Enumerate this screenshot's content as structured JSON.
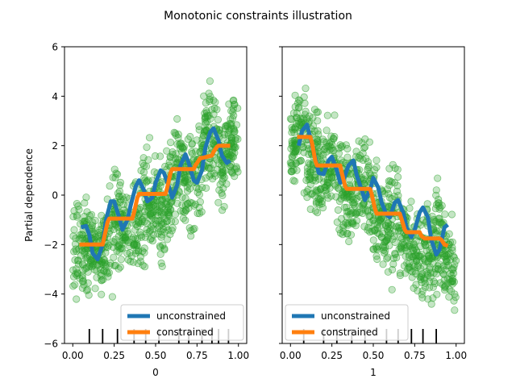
{
  "figure": {
    "title": "Monotonic constraints illustration"
  },
  "chart_data": [
    {
      "type": "line",
      "xlabel": "0",
      "ylabel": "Partial dependence",
      "xlim": [
        -0.05,
        1.05
      ],
      "ylim": [
        -6,
        6
      ],
      "x_ticks": [
        0.0,
        0.25,
        0.5,
        0.75,
        1.0
      ],
      "x_tick_labels": [
        "0.00",
        "0.25",
        "0.50",
        "0.75",
        "1.00"
      ],
      "y_ticks": [
        -6,
        -4,
        -2,
        0,
        2,
        4,
        6
      ],
      "y_tick_labels": [
        "−6",
        "−4",
        "−2",
        "0",
        "2",
        "4",
        "6"
      ],
      "grid": false,
      "legend_placement": "lower-right",
      "scatter_band": {
        "color": "#2ca02c",
        "upper": [
          [
            0.0,
            0.5
          ],
          [
            0.05,
            1.3
          ],
          [
            0.1,
            0.2
          ],
          [
            0.15,
            -0.6
          ],
          [
            0.2,
            0.6
          ],
          [
            0.25,
            1.8
          ],
          [
            0.3,
            1.2
          ],
          [
            0.35,
            0.6
          ],
          [
            0.4,
            2.2
          ],
          [
            0.45,
            3.0
          ],
          [
            0.5,
            2.0
          ],
          [
            0.55,
            1.8
          ],
          [
            0.6,
            3.6
          ],
          [
            0.65,
            4.3
          ],
          [
            0.7,
            3.0
          ],
          [
            0.75,
            3.3
          ],
          [
            0.8,
            5.0
          ],
          [
            0.85,
            5.5
          ],
          [
            0.9,
            4.0
          ],
          [
            0.95,
            4.6
          ],
          [
            1.0,
            5.2
          ]
        ],
        "lower": [
          [
            0.0,
            -4.8
          ],
          [
            0.05,
            -5.6
          ],
          [
            0.1,
            -4.6
          ],
          [
            0.15,
            -4.2
          ],
          [
            0.2,
            -5.2
          ],
          [
            0.25,
            -4.6
          ],
          [
            0.3,
            -3.4
          ],
          [
            0.35,
            -3.9
          ],
          [
            0.4,
            -4.6
          ],
          [
            0.45,
            -3.4
          ],
          [
            0.5,
            -2.6
          ],
          [
            0.55,
            -3.4
          ],
          [
            0.6,
            -3.0
          ],
          [
            0.65,
            -1.6
          ],
          [
            0.7,
            -2.4
          ],
          [
            0.75,
            -2.0
          ],
          [
            0.8,
            -0.6
          ],
          [
            0.85,
            -0.8
          ],
          [
            0.9,
            -1.4
          ],
          [
            0.95,
            -0.4
          ],
          [
            1.0,
            -1.2
          ]
        ]
      },
      "series": [
        {
          "name": "unconstrained",
          "color": "#1f77b4",
          "x": [
            0.05,
            0.08,
            0.1,
            0.12,
            0.15,
            0.18,
            0.2,
            0.23,
            0.25,
            0.28,
            0.3,
            0.33,
            0.35,
            0.38,
            0.4,
            0.43,
            0.45,
            0.48,
            0.5,
            0.53,
            0.55,
            0.58,
            0.6,
            0.63,
            0.65,
            0.68,
            0.7,
            0.73,
            0.75,
            0.78,
            0.8,
            0.83,
            0.85,
            0.88,
            0.9,
            0.93,
            0.95
          ],
          "y": [
            -1.3,
            -1.25,
            -1.6,
            -2.35,
            -2.6,
            -2.0,
            -1.0,
            -0.25,
            -0.25,
            -0.9,
            -1.4,
            -1.0,
            -0.4,
            0.35,
            0.6,
            0.2,
            -0.25,
            -0.1,
            0.5,
            1.0,
            0.9,
            0.35,
            -0.1,
            0.4,
            1.2,
            1.65,
            1.3,
            0.6,
            0.5,
            1.0,
            1.9,
            2.55,
            2.7,
            2.2,
            1.6,
            1.3,
            1.4
          ]
        },
        {
          "name": "constrained",
          "color": "#ff7f0e",
          "x": [
            0.04,
            0.18,
            0.19,
            0.21,
            0.22,
            0.36,
            0.37,
            0.39,
            0.4,
            0.56,
            0.57,
            0.59,
            0.6,
            0.73,
            0.74,
            0.77,
            0.78,
            0.84,
            0.85,
            0.87,
            0.88,
            0.95
          ],
          "y": [
            -2.0,
            -2.0,
            -1.7,
            -1.1,
            -0.95,
            -0.95,
            -0.7,
            -0.1,
            0.05,
            0.05,
            0.3,
            0.9,
            1.05,
            1.05,
            1.2,
            1.5,
            1.5,
            1.6,
            1.75,
            1.95,
            2.0,
            2.0
          ]
        }
      ],
      "rug_x": [
        0.1,
        0.18,
        0.27,
        0.37,
        0.44,
        0.52,
        0.64,
        0.7,
        0.78,
        0.84,
        0.88,
        0.94
      ]
    },
    {
      "type": "line",
      "xlabel": "1",
      "ylabel": "",
      "xlim": [
        -0.05,
        1.05
      ],
      "ylim": [
        -6,
        6
      ],
      "x_ticks": [
        0.0,
        0.25,
        0.5,
        0.75,
        1.0
      ],
      "x_tick_labels": [
        "0.00",
        "0.25",
        "0.50",
        "0.75",
        "1.00"
      ],
      "y_ticks": [
        -6,
        -4,
        -2,
        0,
        2,
        4,
        6
      ],
      "y_tick_labels": [],
      "grid": false,
      "legend_placement": "lower-left",
      "scatter_band": {
        "color": "#2ca02c",
        "upper": [
          [
            0.0,
            4.6
          ],
          [
            0.05,
            5.4
          ],
          [
            0.1,
            5.6
          ],
          [
            0.15,
            4.4
          ],
          [
            0.2,
            3.6
          ],
          [
            0.25,
            4.4
          ],
          [
            0.3,
            3.8
          ],
          [
            0.35,
            2.4
          ],
          [
            0.4,
            2.8
          ],
          [
            0.45,
            3.4
          ],
          [
            0.5,
            2.2
          ],
          [
            0.55,
            1.2
          ],
          [
            0.6,
            1.8
          ],
          [
            0.65,
            2.0
          ],
          [
            0.7,
            0.6
          ],
          [
            0.75,
            0.0
          ],
          [
            0.8,
            1.0
          ],
          [
            0.85,
            1.2
          ],
          [
            0.9,
            1.6
          ],
          [
            0.95,
            0.2
          ],
          [
            1.0,
            -0.8
          ]
        ],
        "lower": [
          [
            0.0,
            -0.6
          ],
          [
            0.05,
            -0.2
          ],
          [
            0.1,
            -1.0
          ],
          [
            0.15,
            -2.2
          ],
          [
            0.2,
            -1.6
          ],
          [
            0.25,
            -1.2
          ],
          [
            0.3,
            -2.4
          ],
          [
            0.35,
            -3.2
          ],
          [
            0.4,
            -2.2
          ],
          [
            0.45,
            -2.8
          ],
          [
            0.5,
            -3.6
          ],
          [
            0.55,
            -3.2
          ],
          [
            0.6,
            -4.0
          ],
          [
            0.65,
            -4.8
          ],
          [
            0.7,
            -4.2
          ],
          [
            0.75,
            -4.8
          ],
          [
            0.8,
            -5.4
          ],
          [
            0.85,
            -4.8
          ],
          [
            0.9,
            -5.0
          ],
          [
            0.95,
            -5.4
          ],
          [
            1.0,
            -5.8
          ]
        ]
      },
      "series": [
        {
          "name": "unconstrained",
          "color": "#1f77b4",
          "x": [
            0.05,
            0.07,
            0.1,
            0.12,
            0.15,
            0.17,
            0.2,
            0.23,
            0.25,
            0.28,
            0.3,
            0.32,
            0.35,
            0.38,
            0.4,
            0.43,
            0.45,
            0.48,
            0.5,
            0.53,
            0.55,
            0.58,
            0.6,
            0.63,
            0.65,
            0.68,
            0.7,
            0.73,
            0.75,
            0.78,
            0.8,
            0.83,
            0.85,
            0.88,
            0.9,
            0.93,
            0.95
          ],
          "y": [
            2.0,
            2.6,
            2.85,
            2.3,
            1.5,
            0.9,
            0.85,
            1.4,
            1.55,
            1.0,
            0.5,
            0.6,
            1.2,
            1.4,
            0.8,
            0.2,
            -0.2,
            0.2,
            0.7,
            0.3,
            -0.3,
            -0.8,
            -0.9,
            -0.3,
            -0.2,
            -0.7,
            -1.3,
            -1.7,
            -1.4,
            -0.7,
            -0.5,
            -0.9,
            -1.8,
            -2.4,
            -2.2,
            -1.3,
            -1.2
          ]
        },
        {
          "name": "constrained",
          "color": "#ff7f0e",
          "x": [
            0.04,
            0.12,
            0.13,
            0.15,
            0.16,
            0.3,
            0.31,
            0.33,
            0.34,
            0.48,
            0.49,
            0.51,
            0.52,
            0.66,
            0.67,
            0.69,
            0.7,
            0.78,
            0.79,
            0.81,
            0.82,
            0.9,
            0.91,
            0.93,
            0.95
          ],
          "y": [
            2.35,
            2.35,
            2.1,
            1.4,
            1.2,
            1.2,
            0.9,
            0.35,
            0.25,
            0.25,
            0.05,
            -0.55,
            -0.75,
            -0.75,
            -0.95,
            -1.4,
            -1.5,
            -1.5,
            -1.65,
            -1.75,
            -1.75,
            -1.75,
            -1.8,
            -2.0,
            -2.05
          ]
        }
      ],
      "rug_x": [
        0.08,
        0.2,
        0.28,
        0.37,
        0.45,
        0.58,
        0.65,
        0.73,
        0.8,
        0.88
      ]
    }
  ]
}
